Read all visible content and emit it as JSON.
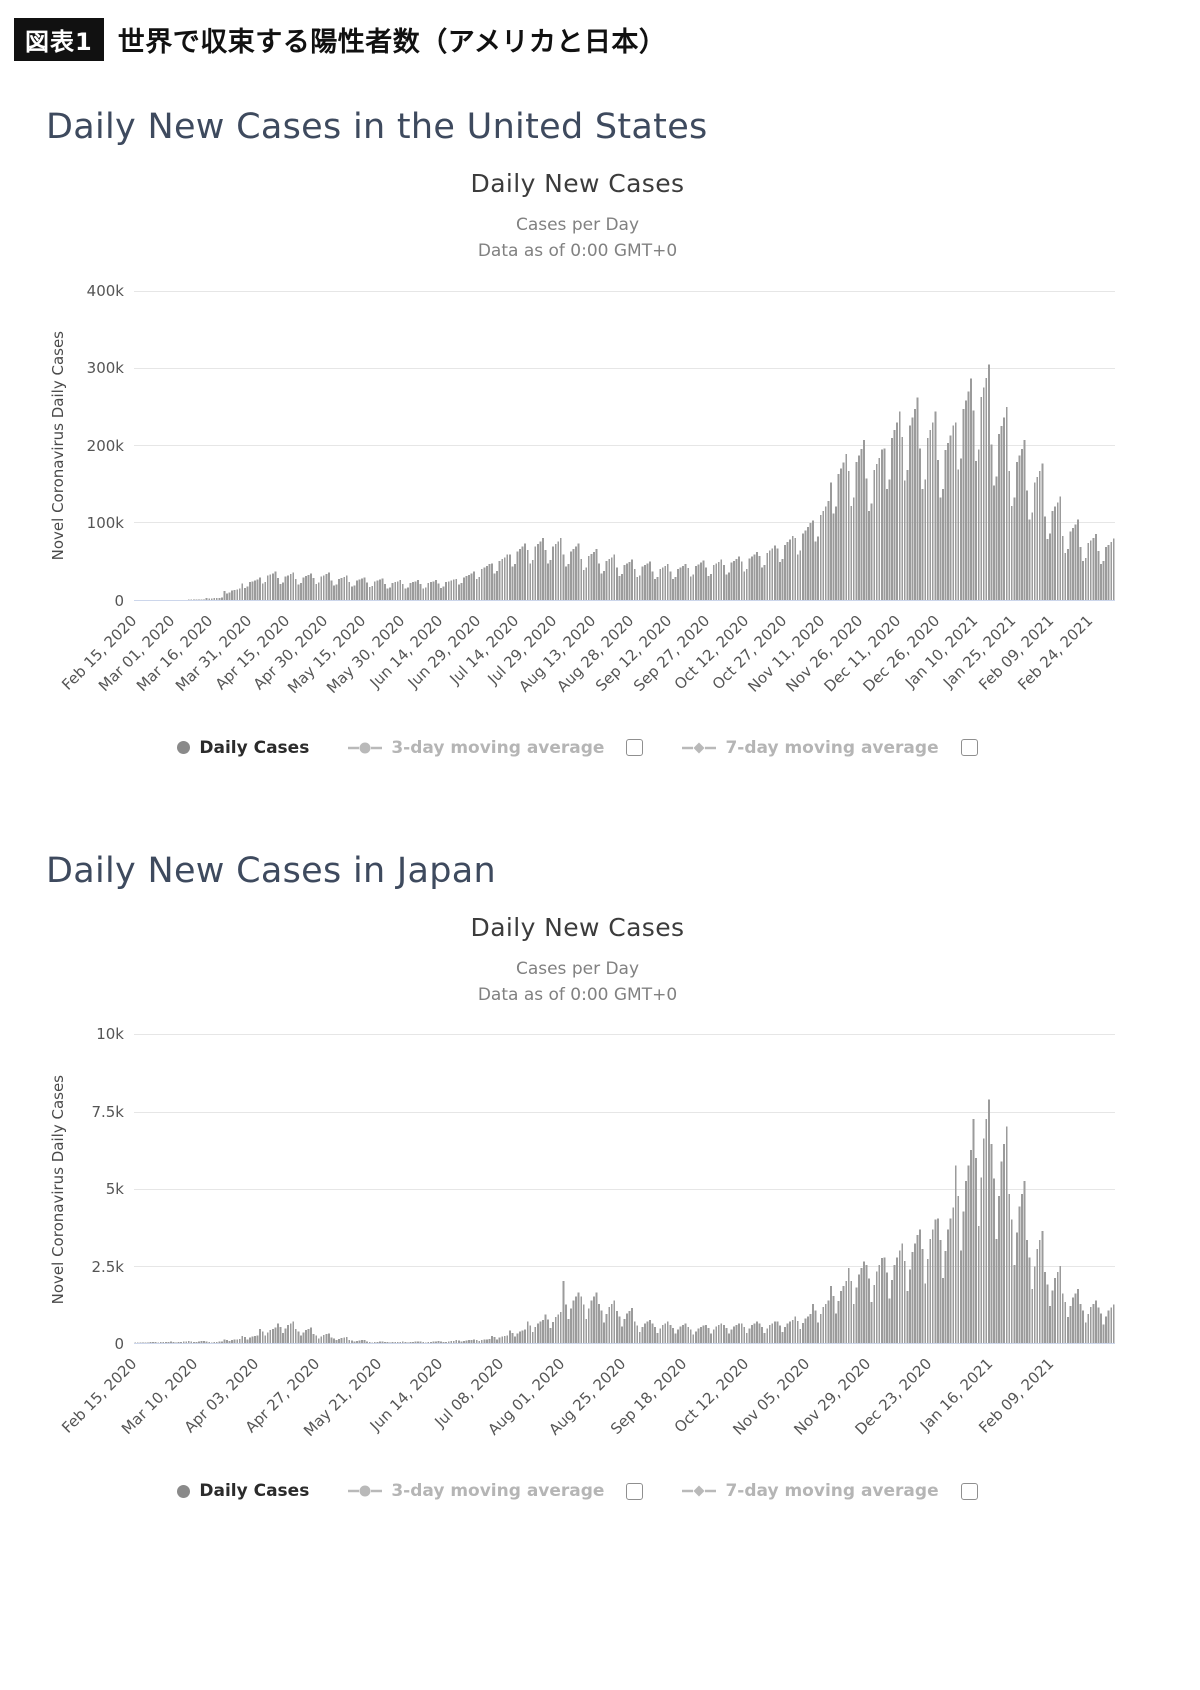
{
  "header": {
    "badge": "図表1",
    "title": "世界で収束する陽性者数（アメリカと日本）"
  },
  "colors": {
    "bar": "#9b9b9b",
    "grid": "#e6e6e6",
    "axis_line": "#ccd6eb",
    "heading": "#3e4a5e"
  },
  "chart_data": [
    {
      "type": "bar",
      "section_heading": "Daily New Cases in the United States",
      "title": "Daily New Cases",
      "subtitle_line1": "Cases per Day",
      "subtitle_line2": "Data as of 0:00 GMT+0",
      "ylabel": "Novel Coronavirus Daily Cases",
      "y_ticks": [
        "0",
        "100k",
        "200k",
        "300k",
        "400k"
      ],
      "ylim": [
        0,
        400000
      ],
      "unit": "daily cases, values stored in thousands",
      "x_tick_interval_days": 15,
      "x_tick_labels": [
        "Feb 15, 2020",
        "Mar 01, 2020",
        "Mar 16, 2020",
        "Mar 31, 2020",
        "Apr 15, 2020",
        "Apr 30, 2020",
        "May 15, 2020",
        "May 30, 2020",
        "Jun 14, 2020",
        "Jun 29, 2020",
        "Jul 14, 2020",
        "Jul 29, 2020",
        "Aug 13, 2020",
        "Aug 28, 2020",
        "Sep 12, 2020",
        "Sep 27, 2020",
        "Oct 12, 2020",
        "Oct 27, 2020",
        "Nov 11, 2020",
        "Nov 26, 2020",
        "Dec 11, 2020",
        "Dec 26, 2020",
        "Jan 10, 2021",
        "Jan 25, 2021",
        "Feb 09, 2021",
        "Feb 24, 2021"
      ],
      "legend": [
        {
          "label": "Daily Cases",
          "active": true,
          "has_checkbox": false
        },
        {
          "label": "3-day moving average",
          "active": false,
          "has_checkbox": true
        },
        {
          "label": "7-day moving average",
          "active": false,
          "has_checkbox": true
        }
      ],
      "values_thousands": [
        0,
        0,
        0,
        0,
        0,
        0,
        0,
        0,
        0,
        0,
        0,
        0,
        0,
        0.1,
        0.1,
        0.1,
        0.1,
        0.1,
        0.1,
        0.1,
        0.2,
        0.5,
        0.4,
        0.4,
        0.5,
        0.6,
        0.6,
        0.7,
        2.5,
        1.8,
        2,
        2.6,
        2.8,
        2.9,
        3.1,
        11.8,
        8.6,
        9.4,
        12.6,
        13.2,
        13.8,
        14.6,
        21.6,
        15.8,
        17.2,
        23.1,
        24.2,
        25.3,
        26.8,
        29.4,
        21.6,
        23.4,
        31.5,
        33,
        34.5,
        36.6,
        28.4,
        20.9,
        22.6,
        30.5,
        31.9,
        33.4,
        35.4,
        27.4,
        20.2,
        21.8,
        29.4,
        30.8,
        32.2,
        34.2,
        28.4,
        20.9,
        22.6,
        30.5,
        31.9,
        33.4,
        35.4,
        25.5,
        18.7,
        20.3,
        27.3,
        28.6,
        29.9,
        31.7,
        23.5,
        17.3,
        18.7,
        25.2,
        26.4,
        27.6,
        29.3,
        22.5,
        16.6,
        17.9,
        24.2,
        25.3,
        26.5,
        28.1,
        20.6,
        15.1,
        16.4,
        22.1,
        23.1,
        24.2,
        25.6,
        20.6,
        15.1,
        16.4,
        22.1,
        23.1,
        24.2,
        25.6,
        20.6,
        15.1,
        16.4,
        22.1,
        23.1,
        24.2,
        25.6,
        21.6,
        15.8,
        17.2,
        23.1,
        24.2,
        25.3,
        26.8,
        27.4,
        20.2,
        21.8,
        29.4,
        30.8,
        32.2,
        34.2,
        37.2,
        27.4,
        29.6,
        39.9,
        41.8,
        43.7,
        46.4,
        47,
        34.6,
        37.4,
        50.4,
        52.8,
        55.2,
        58.6,
        58.8,
        43.2,
        46.8,
        63,
        66,
        69,
        73.2,
        64.7,
        47.5,
        51.5,
        69.3,
        72.6,
        75.9,
        80.5,
        64.7,
        47.5,
        51.5,
        69.3,
        72.6,
        75.9,
        80.5,
        58.8,
        43.2,
        46.8,
        63,
        66,
        69,
        73.2,
        52.9,
        38.9,
        42.1,
        56.7,
        59.4,
        62.1,
        65.9,
        47,
        34.6,
        37.4,
        50.4,
        52.8,
        55.2,
        58.6,
        42.1,
        31,
        33.5,
        45.2,
        47.3,
        49.5,
        52.5,
        40.2,
        29.5,
        32,
        43.1,
        45.1,
        47.2,
        50,
        37.2,
        27.4,
        29.6,
        39.9,
        41.8,
        43.7,
        46.4,
        37.2,
        27.4,
        29.6,
        39.9,
        41.8,
        43.7,
        46.4,
        41.2,
        30.2,
        32.8,
        44.1,
        46.2,
        48.3,
        51.2,
        42.1,
        31,
        33.5,
        45.2,
        47.3,
        49.5,
        52.5,
        45.1,
        33.1,
        35.9,
        48.3,
        50.6,
        52.9,
        56.1,
        50,
        36.7,
        39.8,
        53.6,
        56.1,
        58.7,
        62.2,
        56.8,
        41.8,
        45.2,
        60.9,
        63.8,
        66.7,
        70.8,
        66.6,
        49,
        53,
        71.4,
        74.8,
        78.2,
        83,
        80.4,
        59,
        64,
        86.1,
        90.2,
        94.3,
        100,
        103,
        75.6,
        81.9,
        110,
        115.5,
        120.8,
        128.1,
        152,
        112,
        121,
        163,
        170.5,
        178,
        189,
        167,
        122,
        133,
        178.5,
        187,
        195.5,
        207,
        157,
        115,
        125,
        168,
        176,
        184,
        195,
        196,
        144,
        156,
        210,
        220,
        230,
        244,
        211,
        155,
        168,
        226,
        236.5,
        247,
        262,
        196,
        144,
        156,
        210,
        220,
        230,
        244,
        181,
        133,
        144,
        194,
        203.5,
        213,
        226,
        230,
        169,
        183,
        247,
        258.5,
        270,
        287,
        245,
        180,
        195,
        262.5,
        275,
        287.5,
        305,
        201,
        148,
        160,
        215,
        225.5,
        236,
        250,
        167,
        122,
        133,
        178.5,
        187,
        195.5,
        207,
        142,
        104,
        113,
        152,
        159.5,
        167,
        177,
        108,
        79,
        86,
        115.5,
        121,
        126.5,
        134,
        83,
        61,
        66,
        89,
        93.5,
        98,
        104,
        68.6,
        50.4,
        54.6,
        73.5,
        77,
        80.5,
        85.4,
        63.7,
        46.8,
        50.7,
        68.3,
        71.5,
        74.8,
        79.3
      ]
    },
    {
      "type": "bar",
      "section_heading": "Daily New Cases in Japan",
      "title": "Daily New Cases",
      "subtitle_line1": "Cases per Day",
      "subtitle_line2": "Data as of 0:00 GMT+0",
      "ylabel": "Novel Coronavirus Daily Cases",
      "y_ticks": [
        "0",
        "2.5k",
        "5k",
        "7.5k",
        "10k"
      ],
      "ylim": [
        0,
        10000
      ],
      "unit": "daily cases, values stored in thousands",
      "x_tick_interval_days": 24,
      "x_tick_labels": [
        "Feb 15, 2020",
        "Mar 10, 2020",
        "Apr 03, 2020",
        "Apr 27, 2020",
        "May 21, 2020",
        "Jun 14, 2020",
        "Jul 08, 2020",
        "Aug 01, 2020",
        "Aug 25, 2020",
        "Sep 18, 2020",
        "Oct 12, 2020",
        "Nov 05, 2020",
        "Nov 29, 2020",
        "Dec 23, 2020",
        "Jan 16, 2021",
        "Feb 09, 2021"
      ],
      "legend": [
        {
          "label": "Daily Cases",
          "active": true,
          "has_checkbox": false
        },
        {
          "label": "3-day moving average",
          "active": false,
          "has_checkbox": true
        },
        {
          "label": "7-day moving average",
          "active": false,
          "has_checkbox": true
        }
      ],
      "values_thousands": [
        0.02,
        0.02,
        0.01,
        0.02,
        0.02,
        0.02,
        0.03,
        0.03,
        0.03,
        0.02,
        0.03,
        0.03,
        0.03,
        0.04,
        0.05,
        0.04,
        0.02,
        0.03,
        0.04,
        0.05,
        0.05,
        0.06,
        0.05,
        0.03,
        0.04,
        0.05,
        0.06,
        0.06,
        0.05,
        0.04,
        0.02,
        0.03,
        0.04,
        0.05,
        0.05,
        0.12,
        0.1,
        0.06,
        0.09,
        0.11,
        0.12,
        0.13,
        0.23,
        0.19,
        0.12,
        0.17,
        0.21,
        0.23,
        0.25,
        0.46,
        0.38,
        0.24,
        0.34,
        0.42,
        0.46,
        0.5,
        0.63,
        0.52,
        0.33,
        0.47,
        0.58,
        0.63,
        0.69,
        0.46,
        0.38,
        0.24,
        0.34,
        0.42,
        0.46,
        0.5,
        0.29,
        0.24,
        0.15,
        0.21,
        0.26,
        0.29,
        0.31,
        0.17,
        0.14,
        0.09,
        0.13,
        0.16,
        0.17,
        0.19,
        0.09,
        0.08,
        0.05,
        0.07,
        0.08,
        0.09,
        0.1,
        0.05,
        0.04,
        0.02,
        0.03,
        0.04,
        0.05,
        0.05,
        0.03,
        0.03,
        0.02,
        0.03,
        0.03,
        0.03,
        0.04,
        0.05,
        0.04,
        0.02,
        0.03,
        0.04,
        0.05,
        0.05,
        0.05,
        0.04,
        0.02,
        0.03,
        0.04,
        0.05,
        0.05,
        0.06,
        0.05,
        0.03,
        0.04,
        0.05,
        0.06,
        0.06,
        0.09,
        0.08,
        0.05,
        0.07,
        0.08,
        0.09,
        0.1,
        0.12,
        0.1,
        0.06,
        0.09,
        0.11,
        0.12,
        0.13,
        0.23,
        0.19,
        0.12,
        0.17,
        0.21,
        0.23,
        0.25,
        0.4,
        0.33,
        0.21,
        0.3,
        0.37,
        0.4,
        0.44,
        0.69,
        0.57,
        0.36,
        0.51,
        0.63,
        0.69,
        0.75,
        0.92,
        0.76,
        0.48,
        0.68,
        0.84,
        0.92,
        1.0,
        2.0,
        1.24,
        0.78,
        1.11,
        1.37,
        1.5,
        1.63,
        1.5,
        1.24,
        0.78,
        1.11,
        1.37,
        1.5,
        1.63,
        1.27,
        1.05,
        0.66,
        0.94,
        1.16,
        1.27,
        1.38,
        1.04,
        0.86,
        0.54,
        0.77,
        0.95,
        1.04,
        1.13,
        0.69,
        0.57,
        0.36,
        0.51,
        0.63,
        0.69,
        0.75,
        0.63,
        0.52,
        0.33,
        0.47,
        0.58,
        0.63,
        0.69,
        0.58,
        0.48,
        0.3,
        0.43,
        0.53,
        0.58,
        0.63,
        0.52,
        0.43,
        0.27,
        0.38,
        0.47,
        0.52,
        0.56,
        0.58,
        0.48,
        0.3,
        0.43,
        0.53,
        0.58,
        0.63,
        0.58,
        0.48,
        0.3,
        0.43,
        0.53,
        0.58,
        0.63,
        0.63,
        0.52,
        0.33,
        0.47,
        0.58,
        0.63,
        0.69,
        0.63,
        0.52,
        0.33,
        0.47,
        0.58,
        0.63,
        0.69,
        0.69,
        0.57,
        0.36,
        0.51,
        0.63,
        0.69,
        0.75,
        0.86,
        0.71,
        0.45,
        0.64,
        0.79,
        0.86,
        0.94,
        1.27,
        1.05,
        0.66,
        0.94,
        1.16,
        1.27,
        1.38,
        1.84,
        1.52,
        0.96,
        1.36,
        1.68,
        1.84,
        2.0,
        2.42,
        2.0,
        1.26,
        1.79,
        2.21,
        2.42,
        2.63,
        2.53,
        2.09,
        1.32,
        1.87,
        2.31,
        2.53,
        2.75,
        2.76,
        2.28,
        1.44,
        2.04,
        2.52,
        2.76,
        3.0,
        3.22,
        2.66,
        1.68,
        2.38,
        2.94,
        3.22,
        3.5,
        3.68,
        3.04,
        1.92,
        2.72,
        3.36,
        3.68,
        4.0,
        4.03,
        3.33,
        2.1,
        2.98,
        3.68,
        4.03,
        4.38,
        5.75,
        4.75,
        3.0,
        4.25,
        5.25,
        5.75,
        6.25,
        7.25,
        5.99,
        3.78,
        5.36,
        6.62,
        7.25,
        7.88,
        6.44,
        5.32,
        3.36,
        4.76,
        5.88,
        6.44,
        7.0,
        4.83,
        3.99,
        2.52,
        3.57,
        4.41,
        4.83,
        5.25,
        3.34,
        2.76,
        1.74,
        2.47,
        3.05,
        3.34,
        3.63,
        2.3,
        1.9,
        1.2,
        1.7,
        2.1,
        2.3,
        2.5,
        1.61,
        1.33,
        0.84,
        1.19,
        1.47,
        1.61,
        1.75,
        1.27,
        1.05,
        0.66,
        0.94,
        1.16,
        1.27,
        1.38,
        1.15,
        0.95,
        0.6,
        0.85,
        1.05,
        1.15,
        1.25
      ]
    }
  ]
}
